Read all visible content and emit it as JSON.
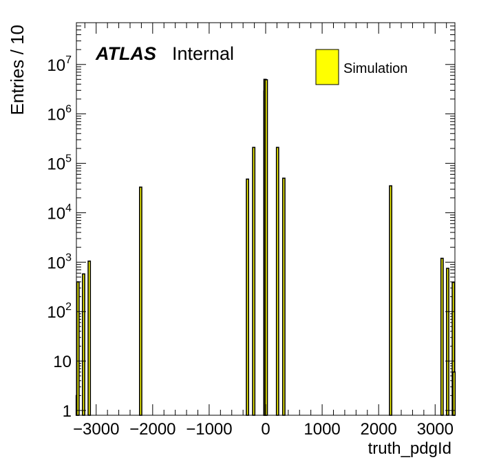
{
  "chart_data": {
    "type": "bar",
    "xlabel": "truth_pdgId",
    "ylabel": "Entries / 10",
    "x_range": [
      -3350,
      3350
    ],
    "y_range": [
      0.8,
      70000000
    ],
    "y_scale": "log",
    "grid": false,
    "x_ticks": [
      -3000,
      -2000,
      -1000,
      0,
      1000,
      2000,
      3000
    ],
    "x_tick_labels": [
      "−3000",
      "−2000",
      "−1000",
      "0",
      "1000",
      "2000",
      "3000"
    ],
    "y_ticks": [
      {
        "value": 1,
        "base": "1",
        "exp": ""
      },
      {
        "value": 10,
        "base": "10",
        "exp": ""
      },
      {
        "value": 100,
        "base": "10",
        "exp": "2"
      },
      {
        "value": 1000,
        "base": "10",
        "exp": "3"
      },
      {
        "value": 10000,
        "base": "10",
        "exp": "4"
      },
      {
        "value": 100000,
        "base": "10",
        "exp": "5"
      },
      {
        "value": 1000000,
        "base": "10",
        "exp": "6"
      },
      {
        "value": 10000000,
        "base": "10",
        "exp": "7"
      }
    ],
    "series": [
      {
        "name": "Simulation",
        "color": "#ffff00",
        "bins": [
          {
            "x": -3334,
            "y": 2
          },
          {
            "x": -3322,
            "y": 400
          },
          {
            "x": -3222,
            "y": 580
          },
          {
            "x": -3122,
            "y": 1050
          },
          {
            "x": -2212,
            "y": 33000
          },
          {
            "x": -321,
            "y": 48000
          },
          {
            "x": -211,
            "y": 210000
          },
          {
            "x": -13,
            "y": 2900000
          },
          {
            "x": -11,
            "y": 5000000
          },
          {
            "x": 11,
            "y": 4900000
          },
          {
            "x": 211,
            "y": 210000
          },
          {
            "x": 321,
            "y": 50000
          },
          {
            "x": 2212,
            "y": 35000
          },
          {
            "x": 3122,
            "y": 1200
          },
          {
            "x": 3222,
            "y": 750
          },
          {
            "x": 3322,
            "y": 390
          },
          {
            "x": 3334,
            "y": 6
          }
        ]
      }
    ]
  },
  "labels": {
    "atlas": "ATLAS",
    "internal": "Internal",
    "legend_entry": "Simulation"
  }
}
